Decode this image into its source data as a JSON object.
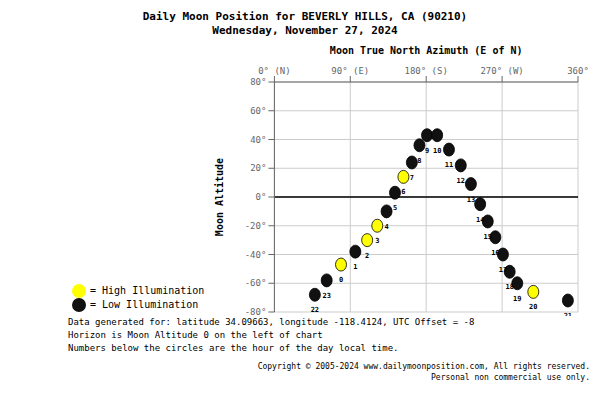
{
  "chart_data": {
    "type": "scatter",
    "title": "Daily Moon Position for BEVERLY HILLS, CA (90210)",
    "subtitle": "Wednesday, November 27, 2024",
    "x_label": "Moon True North Azimuth (E of N)",
    "y_label": "Moon Altitude",
    "xlim": [
      0,
      360
    ],
    "ylim": [
      -80,
      80
    ],
    "xticks": [
      {
        "value": 0,
        "label": "0° (N)"
      },
      {
        "value": 90,
        "label": "90° (E)"
      },
      {
        "value": 180,
        "label": "180° (S)"
      },
      {
        "value": 270,
        "label": "270° (W)"
      },
      {
        "value": 360,
        "label": "360°"
      }
    ],
    "yticks": [
      {
        "value": -80,
        "label": "-80°"
      },
      {
        "value": -60,
        "label": "-60°"
      },
      {
        "value": -40,
        "label": "-40°"
      },
      {
        "value": -20,
        "label": "-20°"
      },
      {
        "value": 0,
        "label": "0°"
      },
      {
        "value": 20,
        "label": "20°"
      },
      {
        "value": 40,
        "label": "40°"
      },
      {
        "value": 60,
        "label": "60°"
      },
      {
        "value": 80,
        "label": "80°"
      }
    ],
    "grid": true,
    "legend": "lower left",
    "marker": "circle",
    "edge_color": "#000000",
    "horizon": {
      "value": 0,
      "color": "#000000"
    },
    "series": [
      {
        "name": "= High Illumination",
        "color": "#FFFF00",
        "x": [
          79,
          110,
          122,
          153,
          307
        ],
        "values": [
          -47,
          -30,
          -20,
          14,
          -66
        ],
        "hours": [
          0,
          2,
          3,
          6,
          20
        ]
      },
      {
        "name": "= Low Illumination",
        "color": "#111111",
        "x": [
          48,
          62,
          96,
          133,
          143,
          163,
          172,
          181,
          193,
          207,
          221,
          233,
          244,
          253,
          262,
          271,
          279,
          288,
          348
        ],
        "values": [
          -68,
          -58,
          -38,
          -10,
          3,
          24,
          36,
          43,
          43,
          33,
          22,
          9,
          -5,
          -17,
          -28,
          -40,
          -52,
          -60,
          -72
        ],
        "hours": [
          22,
          23,
          1,
          4,
          5,
          7,
          8,
          9,
          10,
          11,
          12,
          13,
          14,
          15,
          16,
          17,
          18,
          19,
          21
        ]
      }
    ],
    "annotations": [
      "Data generated for: latitude 34.09663, longitude -118.4124, UTC Offset = -8",
      "Horizon is Moon Altitude 0 on the left of chart",
      "Numbers below the circles are the hour of the day local time."
    ],
    "footnotes": [
      "Copyright © 2005-2024 www.dailymoonposition.com, All rights reserved.",
      "Personal non commercial use only."
    ]
  }
}
